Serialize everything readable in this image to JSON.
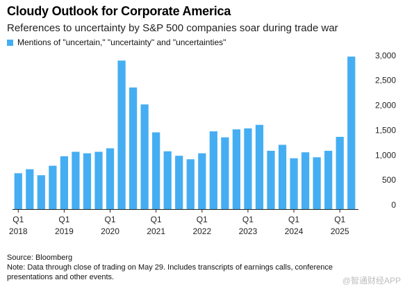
{
  "chart_data": {
    "type": "bar",
    "title": "Cloudy Outlook for Corporate America",
    "subtitle": "References to uncertainty by S&P 500 companies soar during trade war",
    "legend": [
      "Mentions of \"uncertain,\" \"uncertainty\" and \"uncertainties\""
    ],
    "legend_position": "top-left",
    "categories": [
      "Q1 2018",
      "Q2 2018",
      "Q3 2018",
      "Q4 2018",
      "Q1 2019",
      "Q2 2019",
      "Q3 2019",
      "Q4 2019",
      "Q1 2020",
      "Q2 2020",
      "Q3 2020",
      "Q4 2020",
      "Q1 2021",
      "Q2 2021",
      "Q3 2021",
      "Q4 2021",
      "Q1 2022",
      "Q2 2022",
      "Q3 2022",
      "Q4 2022",
      "Q1 2023",
      "Q2 2023",
      "Q3 2023",
      "Q4 2023",
      "Q1 2024",
      "Q2 2024",
      "Q3 2024",
      "Q4 2024",
      "Q1 2025",
      "Q2 2025"
    ],
    "series": [
      {
        "name": "Mentions of \"uncertain,\" \"uncertainty\" and \"uncertainties\"",
        "values": [
          720,
          800,
          680,
          870,
          1060,
          1150,
          1120,
          1150,
          1220,
          2980,
          2440,
          2100,
          1540,
          1160,
          1070,
          1000,
          1120,
          1560,
          1440,
          1600,
          1620,
          1690,
          1170,
          1290,
          1020,
          1140,
          1040,
          1170,
          1450,
          3060
        ]
      }
    ],
    "xaxis": {
      "quarter_labels": [
        "Q1",
        "Q1",
        "Q1",
        "Q1",
        "Q1",
        "Q1",
        "Q1",
        "Q1"
      ],
      "year_labels": [
        "2018",
        "2019",
        "2020",
        "2021",
        "2022",
        "2023",
        "2024",
        "2025"
      ]
    },
    "yticks": [
      0,
      500,
      1000,
      1500,
      2000,
      2500,
      3000
    ],
    "ytick_labels": [
      "0",
      "500",
      "1,000",
      "1,500",
      "2,000",
      "2,500",
      "3,000"
    ],
    "ylim": [
      0,
      3150
    ],
    "y_axis_position": "right",
    "grid": false,
    "color": "#45aef2"
  },
  "footer": {
    "source": "Source: Bloomberg",
    "note": "Note: Data through close of trading on May 29. Includes transcripts of earnings calls, conference presentations and other events."
  },
  "watermark": "@智通财经APP"
}
